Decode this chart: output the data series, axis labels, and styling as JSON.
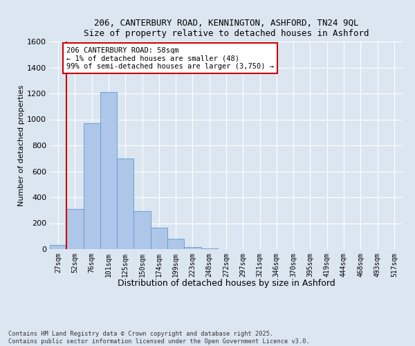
{
  "title_line1": "206, CANTERBURY ROAD, KENNINGTON, ASHFORD, TN24 9QL",
  "title_line2": "Size of property relative to detached houses in Ashford",
  "xlabel": "Distribution of detached houses by size in Ashford",
  "ylabel": "Number of detached properties",
  "bin_labels": [
    "27sqm",
    "52sqm",
    "76sqm",
    "101sqm",
    "125sqm",
    "150sqm",
    "174sqm",
    "199sqm",
    "223sqm",
    "248sqm",
    "272sqm",
    "297sqm",
    "321sqm",
    "346sqm",
    "370sqm",
    "395sqm",
    "419sqm",
    "444sqm",
    "468sqm",
    "493sqm",
    "517sqm"
  ],
  "bar_heights": [
    30,
    310,
    970,
    1210,
    700,
    295,
    165,
    80,
    15,
    3,
    1,
    0,
    0,
    0,
    0,
    0,
    0,
    0,
    0,
    0,
    1
  ],
  "bar_color": "#aec6e8",
  "bar_edge_color": "#5b9bd5",
  "background_color": "#dce6f1",
  "grid_color": "#ffffff",
  "vline_x": 0.5,
  "vline_color": "#cc0000",
  "ylim": [
    0,
    1600
  ],
  "yticks": [
    0,
    200,
    400,
    600,
    800,
    1000,
    1200,
    1400,
    1600
  ],
  "annotation_text": "206 CANTERBURY ROAD: 58sqm\n← 1% of detached houses are smaller (48)\n99% of semi-detached houses are larger (3,750) →",
  "annotation_box_color": "#ffffff",
  "annotation_box_edge": "#cc0000",
  "footer_line1": "Contains HM Land Registry data © Crown copyright and database right 2025.",
  "footer_line2": "Contains public sector information licensed under the Open Government Licence v3.0."
}
